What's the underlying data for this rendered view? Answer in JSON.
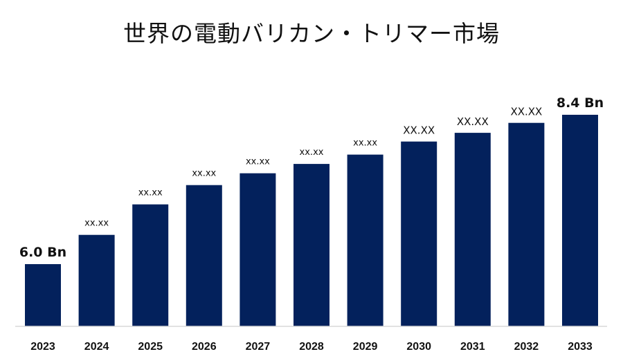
{
  "chart_data": {
    "type": "bar",
    "title": "世界の電動バリカン・トリマー市場",
    "categories": [
      "2023",
      "2024",
      "2025",
      "2026",
      "2027",
      "2028",
      "2029",
      "2030",
      "2031",
      "2032",
      "2033"
    ],
    "values": [
      6.0,
      6.47,
      6.96,
      7.27,
      7.46,
      7.61,
      7.76,
      7.97,
      8.11,
      8.27,
      8.4
    ],
    "data_labels": [
      "6.0 Bn",
      "xx.xx",
      "xx.xx",
      "xx.xx",
      "xx.xx",
      "xx.xx",
      "xx.xx",
      "XX.XX",
      "XX.XX",
      "XX.XX",
      "8.4 Bn"
    ],
    "xlabel": "",
    "ylabel": "",
    "ylim": [
      5.0,
      8.6
    ],
    "grid": false,
    "legend": "none",
    "bar_color": "#03215c"
  }
}
